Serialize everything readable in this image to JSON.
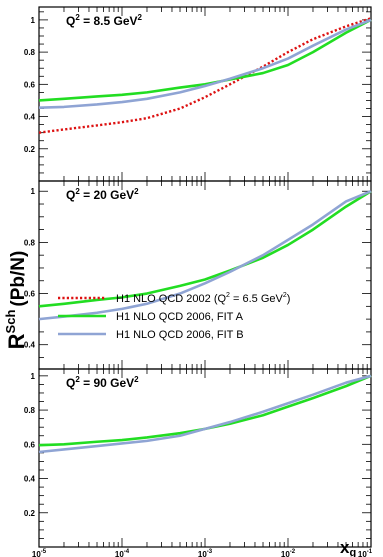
{
  "chart_data": {
    "type": "line",
    "ylabel": "R",
    "ylabel_sup": "Sch",
    "ylabel_rest": "(Pb/N)",
    "xlabel": "x",
    "xlabel_sub": "g",
    "xscale": "log",
    "xlim": [
      1e-05,
      0.1
    ],
    "x_ticks": [
      {
        "base": "10",
        "exp": "-5"
      },
      {
        "base": "10",
        "exp": "-4"
      },
      {
        "base": "10",
        "exp": "-3"
      },
      {
        "base": "10",
        "exp": "-2"
      },
      {
        "base": "10",
        "exp": "-1"
      }
    ],
    "legend": {
      "placement": "middle-panel-lower-right",
      "entries": [
        {
          "label": "H1 NLO QCD 2002 (Q",
          "sup": "2",
          "label_end": " = 6.5 GeV",
          "sup_end": "2",
          "close": ")",
          "color": "#dd1111",
          "style": "dotted"
        },
        {
          "label": "H1 NLO QCD 2006, FIT A",
          "color": "#22dd22",
          "style": "solid"
        },
        {
          "label": "H1 NLO QCD 2006, FIT B",
          "color": "#8fa4d4",
          "style": "solid"
        }
      ]
    },
    "panels": [
      {
        "title": "Q",
        "title_sup": "2",
        "title_rest": " = 8.5 GeV",
        "title_sup2": "2",
        "ylim": [
          0,
          1.08
        ],
        "y_ticks": [
          "0.2",
          "0.4",
          "0.6",
          "0.8",
          "1"
        ],
        "y_tick_values": [
          0.2,
          0.4,
          0.6,
          0.8,
          1.0
        ],
        "series": [
          {
            "color": "#dd1111",
            "style": "dotted",
            "x": [
              1e-05,
              2e-05,
              5e-05,
              0.0001,
              0.0002,
              0.0005,
              0.001,
              0.002,
              0.005,
              0.01,
              0.02,
              0.05,
              0.1
            ],
            "y": [
              0.3,
              0.32,
              0.345,
              0.365,
              0.39,
              0.45,
              0.52,
              0.6,
              0.71,
              0.8,
              0.88,
              0.96,
              1.01
            ]
          },
          {
            "color": "#22dd22",
            "style": "solid",
            "x": [
              1e-05,
              2e-05,
              5e-05,
              0.0001,
              0.0002,
              0.0005,
              0.001,
              0.002,
              0.005,
              0.01,
              0.02,
              0.05,
              0.1
            ],
            "y": [
              0.5,
              0.51,
              0.525,
              0.535,
              0.55,
              0.58,
              0.6,
              0.63,
              0.67,
              0.72,
              0.8,
              0.92,
              1.0
            ]
          },
          {
            "color": "#8fa4d4",
            "style": "solid",
            "x": [
              1e-05,
              2e-05,
              5e-05,
              0.0001,
              0.0002,
              0.0005,
              0.001,
              0.002,
              0.005,
              0.01,
              0.02,
              0.05,
              0.1
            ],
            "y": [
              0.455,
              0.46,
              0.475,
              0.49,
              0.51,
              0.55,
              0.59,
              0.635,
              0.7,
              0.76,
              0.84,
              0.94,
              1.0
            ]
          }
        ]
      },
      {
        "title": "Q",
        "title_sup": "2",
        "title_rest": " = 20 GeV",
        "title_sup2": "2",
        "ylim": [
          0.305,
          1.04
        ],
        "y_ticks": [
          "0.4",
          "0.6",
          "0.8",
          "1"
        ],
        "y_tick_values": [
          0.4,
          0.6,
          0.8,
          1.0
        ],
        "series": [
          {
            "color": "#22dd22",
            "style": "solid",
            "x": [
              1e-05,
              2e-05,
              5e-05,
              0.0001,
              0.0002,
              0.0005,
              0.001,
              0.002,
              0.005,
              0.01,
              0.02,
              0.05,
              0.1
            ],
            "y": [
              0.55,
              0.56,
              0.575,
              0.585,
              0.6,
              0.63,
              0.655,
              0.69,
              0.74,
              0.79,
              0.85,
              0.94,
              1.0
            ]
          },
          {
            "color": "#8fa4d4",
            "style": "solid",
            "x": [
              1e-05,
              2e-05,
              5e-05,
              0.0001,
              0.0002,
              0.0005,
              0.001,
              0.002,
              0.005,
              0.01,
              0.02,
              0.05,
              0.1
            ],
            "y": [
              0.5,
              0.51,
              0.525,
              0.54,
              0.56,
              0.6,
              0.64,
              0.685,
              0.75,
              0.81,
              0.87,
              0.96,
              1.0
            ]
          }
        ]
      },
      {
        "title": "Q",
        "title_sup": "2",
        "title_rest": " = 90 GeV",
        "title_sup2": "2",
        "ylim": [
          0,
          1.04
        ],
        "y_ticks": [
          "0.2",
          "0.4",
          "0.6",
          "0.8",
          "1"
        ],
        "y_tick_values": [
          0.2,
          0.4,
          0.6,
          0.8,
          1.0
        ],
        "series": [
          {
            "color": "#22dd22",
            "style": "solid",
            "x": [
              1e-05,
              2e-05,
              5e-05,
              0.0001,
              0.0002,
              0.0005,
              0.001,
              0.002,
              0.005,
              0.01,
              0.02,
              0.05,
              0.1
            ],
            "y": [
              0.595,
              0.6,
              0.615,
              0.625,
              0.64,
              0.665,
              0.69,
              0.72,
              0.77,
              0.82,
              0.87,
              0.94,
              1.0
            ]
          },
          {
            "color": "#8fa4d4",
            "style": "solid",
            "x": [
              1e-05,
              2e-05,
              5e-05,
              0.0001,
              0.0002,
              0.0005,
              0.001,
              0.002,
              0.005,
              0.01,
              0.02,
              0.05,
              0.1
            ],
            "y": [
              0.555,
              0.57,
              0.59,
              0.605,
              0.62,
              0.65,
              0.69,
              0.73,
              0.79,
              0.84,
              0.89,
              0.96,
              1.0
            ]
          }
        ]
      }
    ]
  }
}
